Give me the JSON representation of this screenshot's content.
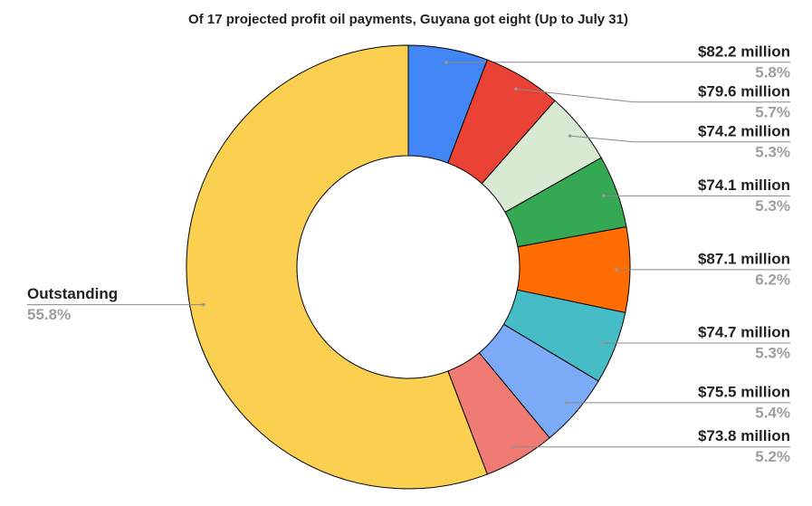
{
  "chart_data": {
    "type": "donut",
    "title": "Of 17 projected profit oil payments, Guyana got eight (Up to July 31)",
    "categories": [
      "$82.2 million",
      "$79.6 million",
      "$74.2 million",
      "$74.1 million",
      "$87.1 million",
      "$74.7 million",
      "$75.5 million",
      "$73.8 million",
      "Outstanding"
    ],
    "values": [
      5.8,
      5.7,
      5.3,
      5.3,
      6.2,
      5.3,
      5.4,
      5.2,
      55.8
    ],
    "value_labels": [
      "5.8%",
      "5.7%",
      "5.3%",
      "5.3%",
      "6.2%",
      "5.3%",
      "5.4%",
      "5.2%",
      "55.8%"
    ],
    "colors": [
      "#4285f4",
      "#ea4335",
      "#d9ead3",
      "#34a853",
      "#ff6d01",
      "#46bdc6",
      "#7baaf7",
      "#f07b72",
      "#fbd050"
    ]
  }
}
